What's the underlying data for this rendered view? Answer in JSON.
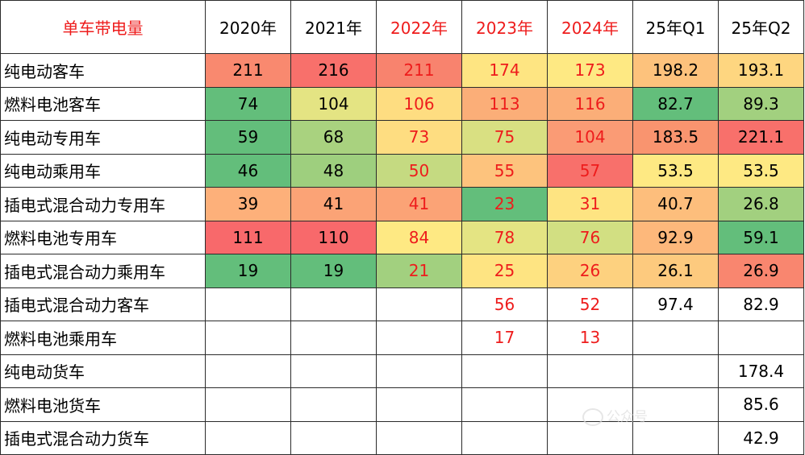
{
  "chart_data": {
    "type": "table",
    "title": "单车带电量",
    "columns": [
      "2020年",
      "2021年",
      "2022年",
      "2023年",
      "2024年",
      "25年Q1",
      "25年Q2"
    ],
    "red_columns": [
      2,
      3,
      4
    ],
    "rows": [
      {
        "label": "纯电动客车",
        "values": [
          "211",
          "216",
          "211",
          "174",
          "173",
          "198.2",
          "193.1"
        ]
      },
      {
        "label": "燃料电池客车",
        "values": [
          "74",
          "104",
          "106",
          "113",
          "116",
          "82.7",
          "89.3"
        ]
      },
      {
        "label": "纯电动专用车",
        "values": [
          "59",
          "68",
          "73",
          "75",
          "104",
          "183.5",
          "221.1"
        ]
      },
      {
        "label": "纯电动乘用车",
        "values": [
          "46",
          "48",
          "50",
          "55",
          "57",
          "53.5",
          "53.5"
        ]
      },
      {
        "label": "插电式混合动力专用车",
        "values": [
          "39",
          "41",
          "41",
          "23",
          "31",
          "40.7",
          "26.8"
        ]
      },
      {
        "label": "燃料电池专用车",
        "values": [
          "111",
          "110",
          "84",
          "78",
          "76",
          "92.9",
          "59.1"
        ]
      },
      {
        "label": "插电式混合动力乘用车",
        "values": [
          "19",
          "19",
          "21",
          "25",
          "26",
          "26.1",
          "26.9"
        ]
      },
      {
        "label": "插电式混合动力客车",
        "values": [
          "",
          "",
          "",
          "56",
          "52",
          "97.4",
          "82.9"
        ]
      },
      {
        "label": "燃料电池乘用车",
        "values": [
          "",
          "",
          "",
          "17",
          "13",
          "",
          ""
        ]
      },
      {
        "label": "纯电动货车",
        "values": [
          "",
          "",
          "",
          "",
          "",
          "",
          "178.4"
        ]
      },
      {
        "label": "燃料电池货车",
        "values": [
          "",
          "",
          "",
          "",
          "",
          "",
          "85.6"
        ]
      },
      {
        "label": "插电式混合动力货车",
        "values": [
          "",
          "",
          "",
          "",
          "",
          "",
          "42.9"
        ]
      }
    ],
    "cell_colors": [
      [
        "#f9896f",
        "#f8706b",
        "#f8836e",
        "#fee582",
        "#fee983",
        "#fdc27c",
        "#fed680"
      ],
      [
        "#63be7b",
        "#e4e483",
        "#fedd81",
        "#fbae78",
        "#fbae78",
        "#63be7b",
        "#a2d07f"
      ],
      [
        "#63be7b",
        "#a9d27f",
        "#fedd81",
        "#d9e082",
        "#fa9b75",
        "#f9946f",
        "#f8706b"
      ],
      [
        "#63be7b",
        "#9ecf7e",
        "#c5da81",
        "#fdc37d",
        "#f8706b",
        "#fee983",
        "#fee983"
      ],
      [
        "#fdb07a",
        "#fba376",
        "#fba376",
        "#63be7b",
        "#fee482",
        "#fdbe7c",
        "#a2d07f"
      ],
      [
        "#f8696b",
        "#f8696b",
        "#fee983",
        "#e4e483",
        "#d2df82",
        "#fdb87b",
        "#63be7b"
      ],
      [
        "#63be7b",
        "#63be7b",
        "#a2d07f",
        "#fee482",
        "#fdd17f",
        "#fdca7e",
        "#f9866f"
      ],
      [
        "",
        "",
        "",
        "",
        "",
        "",
        ""
      ],
      [
        "",
        "",
        "",
        "",
        "",
        "",
        ""
      ],
      [
        "",
        "",
        "",
        "",
        "",
        "",
        ""
      ],
      [
        "",
        "",
        "",
        "",
        "",
        "",
        ""
      ],
      [
        "",
        "",
        "",
        "",
        "",
        "",
        ""
      ]
    ]
  },
  "watermark": {
    "text": "公众号"
  }
}
